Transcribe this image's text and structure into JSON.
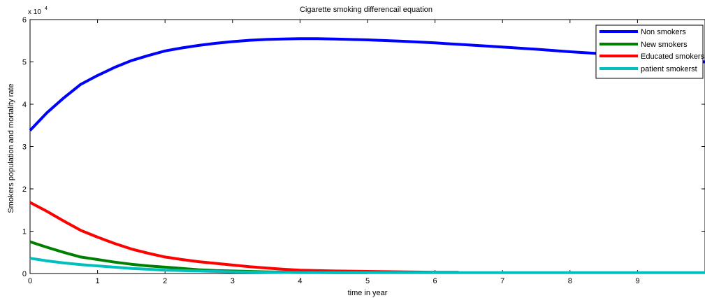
{
  "chart_data": {
    "type": "line",
    "title": "Cigarette smoking differencail equation",
    "xlabel": "time in year",
    "ylabel": "Smokers population and mortality  rate",
    "y_exponent_label": "x 10",
    "y_exponent_power": "4",
    "xlim": [
      0,
      10
    ],
    "ylim": [
      0,
      6
    ],
    "x_ticks": [
      "0",
      "1",
      "2",
      "3",
      "4",
      "5",
      "6",
      "7",
      "8",
      "9"
    ],
    "y_ticks": [
      "0",
      "1",
      "2",
      "3",
      "4",
      "5",
      "6"
    ],
    "grid": false,
    "legend_position": "top-right",
    "series": [
      {
        "name": "Non smokers",
        "color": "#0000ff",
        "points": [
          [
            0,
            3.38
          ],
          [
            0.25,
            3.8
          ],
          [
            0.5,
            4.15
          ],
          [
            0.75,
            4.47
          ],
          [
            1,
            4.68
          ],
          [
            1.25,
            4.87
          ],
          [
            1.5,
            5.03
          ],
          [
            1.75,
            5.15
          ],
          [
            2,
            5.26
          ],
          [
            2.25,
            5.33
          ],
          [
            2.5,
            5.39
          ],
          [
            2.75,
            5.44
          ],
          [
            3,
            5.48
          ],
          [
            3.25,
            5.51
          ],
          [
            3.5,
            5.53
          ],
          [
            3.75,
            5.54
          ],
          [
            4,
            5.55
          ],
          [
            4.25,
            5.55
          ],
          [
            4.5,
            5.54
          ],
          [
            4.75,
            5.53
          ],
          [
            5,
            5.52
          ],
          [
            5.5,
            5.49
          ],
          [
            6,
            5.45
          ],
          [
            6.5,
            5.4
          ],
          [
            7,
            5.35
          ],
          [
            7.5,
            5.3
          ],
          [
            8,
            5.24
          ],
          [
            8.5,
            5.19
          ],
          [
            9,
            5.12
          ],
          [
            9.5,
            5.06
          ],
          [
            10,
            5.0
          ]
        ]
      },
      {
        "name": "New smokers",
        "color": "#008000",
        "points": [
          [
            0,
            0.75
          ],
          [
            0.25,
            0.62
          ],
          [
            0.5,
            0.5
          ],
          [
            0.75,
            0.39
          ],
          [
            1,
            0.33
          ],
          [
            1.25,
            0.27
          ],
          [
            1.5,
            0.22
          ],
          [
            1.75,
            0.18
          ],
          [
            2,
            0.15
          ],
          [
            2.25,
            0.12
          ],
          [
            2.5,
            0.09
          ],
          [
            2.75,
            0.07
          ],
          [
            3,
            0.06
          ],
          [
            3.5,
            0.04
          ],
          [
            4,
            0.03
          ],
          [
            4.5,
            0.02
          ],
          [
            5,
            0.02
          ]
        ]
      },
      {
        "name": "Educated smokers",
        "color": "#ff0000",
        "points": [
          [
            0,
            1.68
          ],
          [
            0.25,
            1.47
          ],
          [
            0.5,
            1.24
          ],
          [
            0.75,
            1.02
          ],
          [
            1,
            0.86
          ],
          [
            1.25,
            0.71
          ],
          [
            1.5,
            0.58
          ],
          [
            1.75,
            0.48
          ],
          [
            2,
            0.39
          ],
          [
            2.25,
            0.33
          ],
          [
            2.5,
            0.28
          ],
          [
            2.75,
            0.24
          ],
          [
            3,
            0.2
          ],
          [
            3.25,
            0.16
          ],
          [
            3.5,
            0.13
          ],
          [
            3.75,
            0.1
          ],
          [
            4,
            0.08
          ],
          [
            4.5,
            0.06
          ],
          [
            5,
            0.05
          ],
          [
            5.5,
            0.04
          ],
          [
            6,
            0.03
          ],
          [
            6.35,
            0.03
          ]
        ]
      },
      {
        "name": "patient smokerst",
        "color": "#00bfbf",
        "points": [
          [
            0,
            0.36
          ],
          [
            0.25,
            0.3
          ],
          [
            0.5,
            0.25
          ],
          [
            0.75,
            0.21
          ],
          [
            1,
            0.18
          ],
          [
            1.25,
            0.15
          ],
          [
            1.5,
            0.12
          ],
          [
            1.75,
            0.1
          ],
          [
            2,
            0.08
          ],
          [
            2.5,
            0.06
          ],
          [
            3,
            0.04
          ],
          [
            3.5,
            0.03
          ],
          [
            4,
            0.02
          ],
          [
            5,
            0.02
          ],
          [
            6,
            0.02
          ],
          [
            7,
            0.02
          ],
          [
            8,
            0.02
          ],
          [
            9,
            0.02
          ],
          [
            10,
            0.02
          ]
        ]
      }
    ]
  }
}
